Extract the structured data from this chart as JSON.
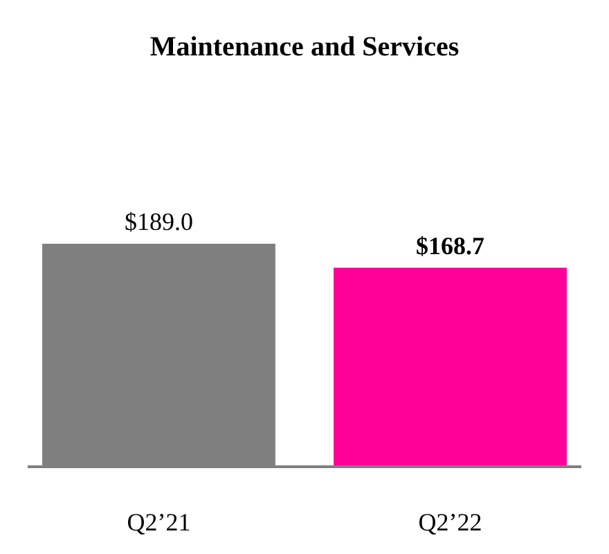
{
  "chart_data": {
    "type": "bar",
    "title": "Maintenance and Services",
    "categories": [
      "Q2’21",
      "Q2’22"
    ],
    "values": [
      189.0,
      168.7
    ],
    "colors": [
      "#7f7f7f",
      "#ff0099"
    ],
    "value_labels": [
      "$189.0",
      "$168.7"
    ]
  }
}
